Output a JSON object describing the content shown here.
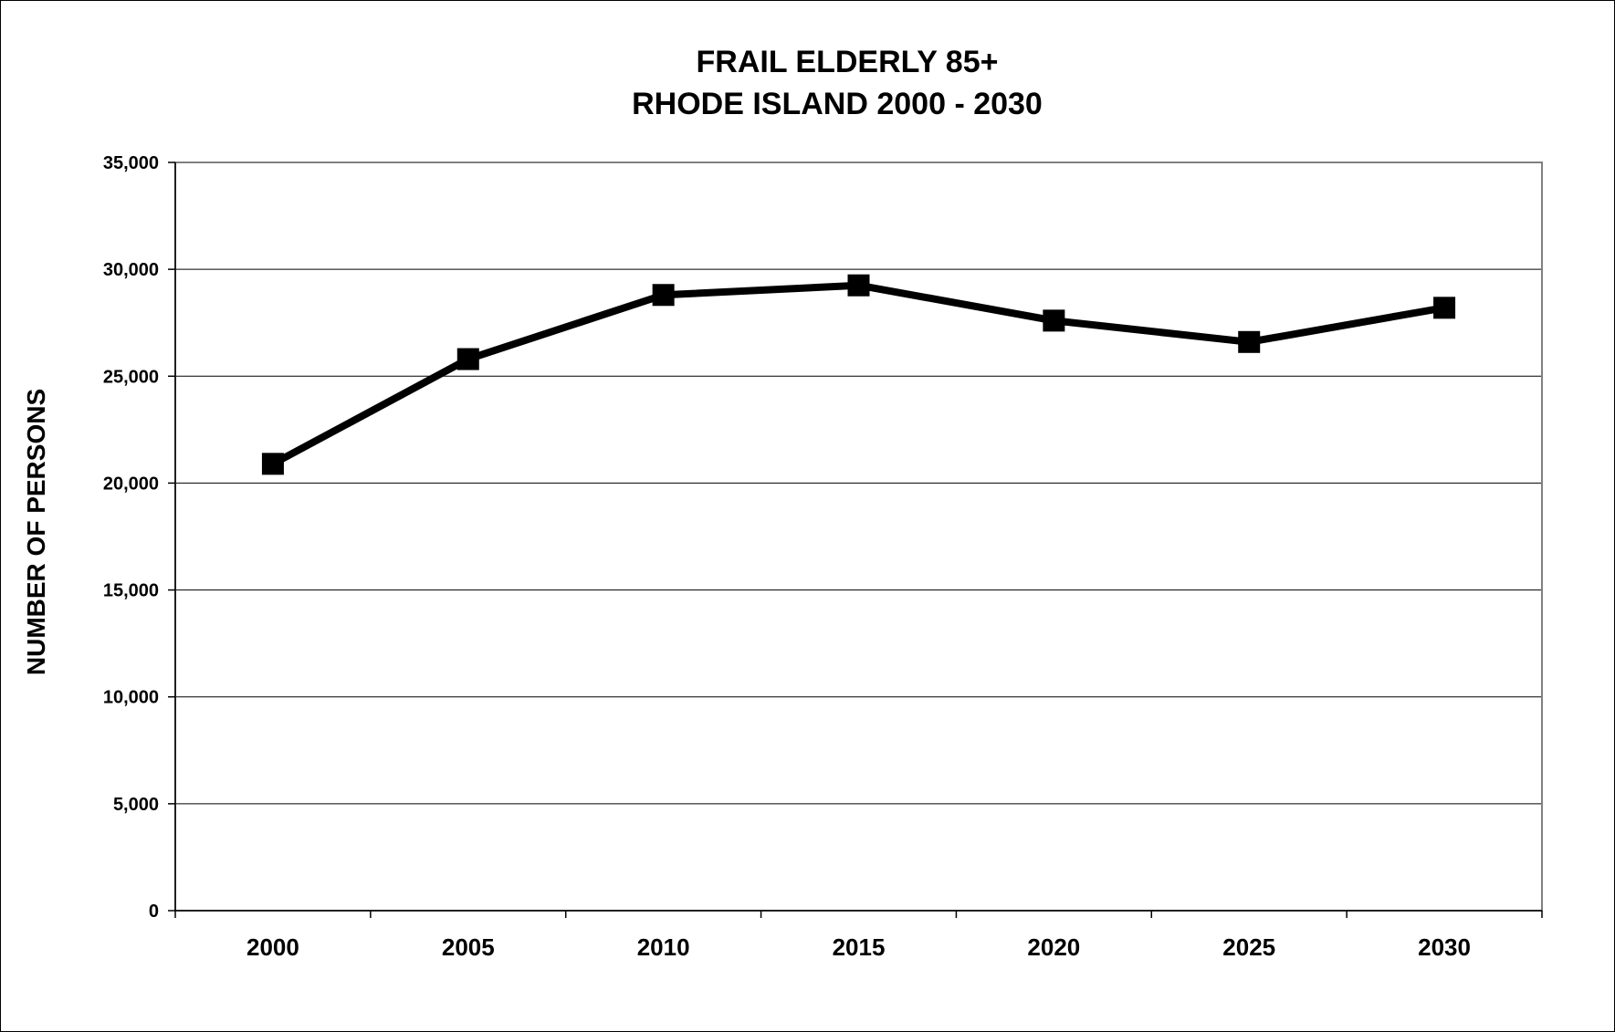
{
  "chart_data": {
    "type": "line",
    "title": "FRAIL ELDERLY 85+",
    "subtitle": "RHODE ISLAND 2000 - 2030",
    "xlabel": "",
    "ylabel": "NUMBER OF PERSONS",
    "categories": [
      "2000",
      "2005",
      "2010",
      "2015",
      "2020",
      "2025",
      "2030"
    ],
    "series": [
      {
        "values": [
          20900,
          25800,
          28800,
          29250,
          27600,
          26600,
          28200
        ]
      }
    ],
    "ylim": [
      0,
      35000
    ],
    "yticks": [
      0,
      5000,
      10000,
      15000,
      20000,
      25000,
      30000,
      35000
    ],
    "ytick_labels": [
      "0",
      "5,000",
      "10,000",
      "15,000",
      "20,000",
      "25,000",
      "30,000",
      "35,000"
    ],
    "grid": "horizontal",
    "legend": "none",
    "marker": "square",
    "line_color": "#000000"
  }
}
